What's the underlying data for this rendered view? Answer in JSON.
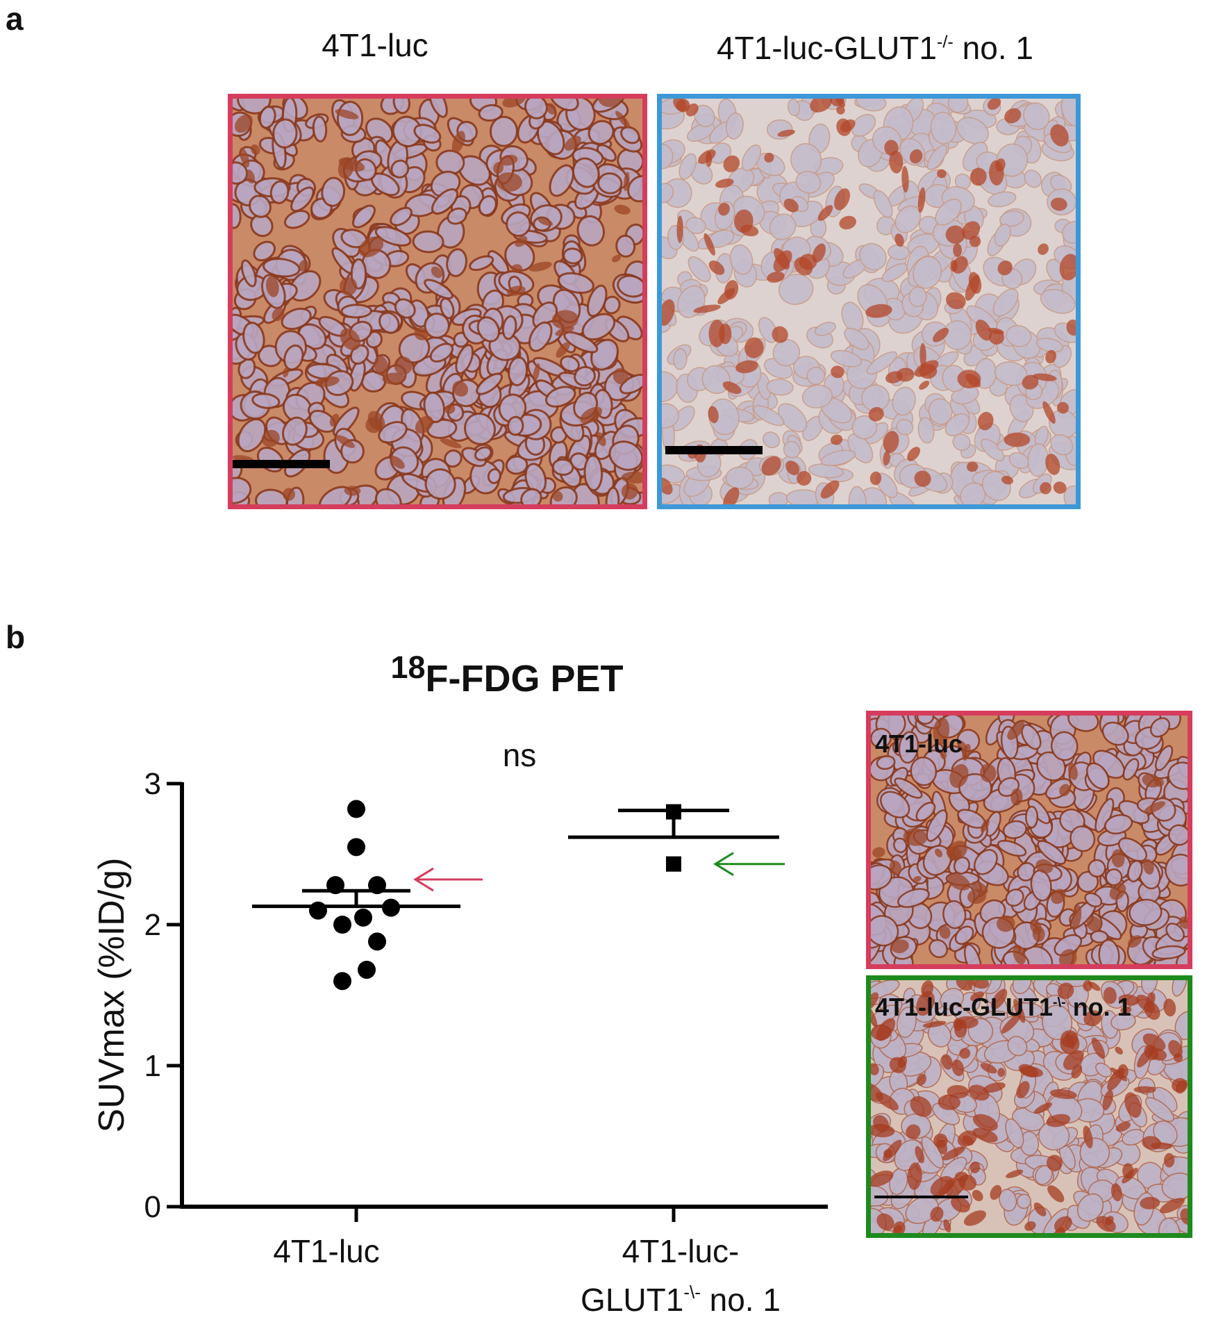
{
  "panel_a": {
    "letter": "a",
    "left_label": "4T1-luc",
    "right_label_main": "4T1-luc-GLUT1",
    "right_label_sup": "-/-",
    "right_label_suffix": " no. 1",
    "left_border_color": "#d63c5c",
    "right_border_color": "#3d98d8"
  },
  "panel_b": {
    "letter": "b",
    "inset_top_label": "4T1-luc",
    "inset_bottom_label_main": "4T1-luc-GLUT1",
    "inset_bottom_label_sup": "-\\-",
    "inset_bottom_label_suffix": " no. 1",
    "inset_top_border_color": "#d63c5c",
    "inset_bottom_border_color": "#1e8a1e"
  },
  "chart_data": {
    "type": "scatter",
    "title_sup": "18",
    "title_main": "F-FDG PET",
    "ylabel": "SUVmax (%ID/g)",
    "ylim": [
      0,
      3
    ],
    "yticks": [
      "0",
      "1",
      "2",
      "3"
    ],
    "categories": [
      {
        "label_line1": "4T1-luc",
        "label_line2": "",
        "label_line2_sup": "",
        "label_line2_suffix": ""
      },
      {
        "label_line1": "4T1-luc-",
        "label_line2": "GLUT1",
        "label_line2_sup": "-\\-",
        "label_line2_suffix": " no. 1"
      }
    ],
    "series": [
      {
        "marker": "circle",
        "values": [
          2.82,
          2.55,
          2.28,
          2.28,
          2.1,
          2.12,
          2.05,
          2.0,
          1.88,
          1.68,
          1.6
        ],
        "mean": 2.13,
        "sem": 0.11
      },
      {
        "marker": "square",
        "values": [
          2.8,
          2.43
        ],
        "mean": 2.62,
        "sem": 0.19
      }
    ],
    "significance": "ns",
    "arrows": [
      {
        "category": 0,
        "y": 2.32,
        "color": "#d63c5c"
      },
      {
        "category": 1,
        "y": 2.43,
        "color": "#1e8a1e"
      }
    ]
  }
}
